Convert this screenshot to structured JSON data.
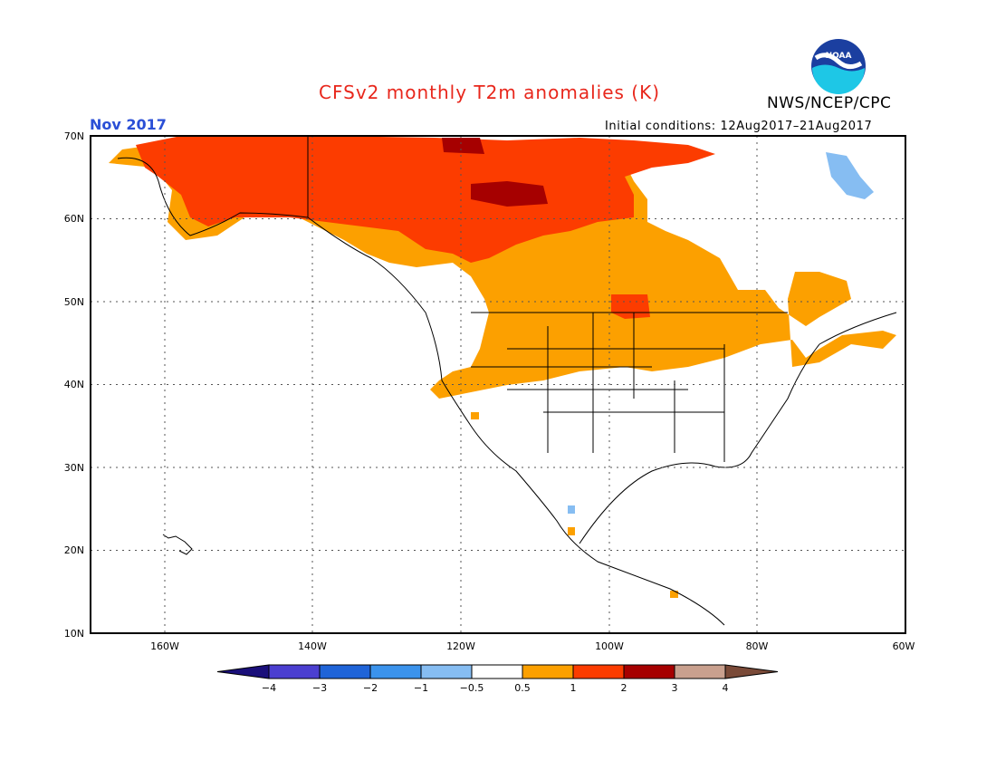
{
  "header": {
    "title": "CFSv2 monthly T2m anomalies (K)",
    "month": "Nov 2017",
    "agency": "NWS/NCEP/CPC",
    "initial_conditions": "Initial conditions: 12Aug2017–21Aug2017",
    "logo_text": "NOAA"
  },
  "map": {
    "lat_labels": [
      "70N",
      "60N",
      "50N",
      "40N",
      "30N",
      "20N",
      "10N"
    ],
    "lon_labels": [
      "160W",
      "140W",
      "120W",
      "100W",
      "80W",
      "60W"
    ],
    "lat_range": [
      10,
      70
    ],
    "lon_range": [
      -170,
      -60
    ],
    "grid": "dotted"
  },
  "colorbar": {
    "levels": [
      "−4",
      "−3",
      "−2",
      "−1",
      "−0.5",
      "0.5",
      "1",
      "2",
      "3",
      "4"
    ],
    "colors": [
      "#1a0f7a",
      "#4b3fd0",
      "#1f64d8",
      "#3b93ec",
      "#86bdf2",
      "#ffffff",
      "#fca000",
      "#fc3c00",
      "#a60000",
      "#c9a08e",
      "#7a4a38"
    ]
  }
}
